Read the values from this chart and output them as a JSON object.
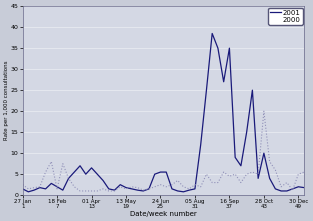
{
  "title": "",
  "xlabel": "Date/week number",
  "ylabel": "Rate per 1,000 consultations",
  "background_color": "#c8ccd8",
  "plot_bg_color": "#d4d8e4",
  "x_tick_labels": [
    "27 Jan\n1",
    "18 Feb\n7",
    "01 Apr\n13",
    "13 May\n19",
    "24 Jun\n25",
    "05 Aug\n31",
    "16 Sep\n37",
    "28 Oct\n43",
    "30 Dec\n49"
  ],
  "x_tick_positions": [
    1,
    7,
    13,
    19,
    25,
    31,
    37,
    43,
    49
  ],
  "ylim": [
    0,
    45
  ],
  "yticks": [
    0,
    5,
    10,
    15,
    20,
    25,
    30,
    35,
    40,
    45
  ],
  "line_2001_color": "#1a1a7a",
  "line_2000_color": "#9090b8",
  "legend_labels": [
    "2001",
    "2000"
  ],
  "weeks_2001": [
    1,
    2,
    3,
    4,
    5,
    6,
    7,
    8,
    9,
    10,
    11,
    12,
    13,
    14,
    15,
    16,
    17,
    18,
    19,
    20,
    21,
    22,
    23,
    24,
    25,
    26,
    27,
    28,
    29,
    30,
    31,
    32,
    33,
    34,
    35,
    36,
    37,
    38,
    39,
    40,
    41,
    42,
    43,
    44,
    45,
    46,
    47,
    48,
    49,
    50
  ],
  "values_2001": [
    1.5,
    0.8,
    1.2,
    1.8,
    1.5,
    2.8,
    2.0,
    1.2,
    4.0,
    5.5,
    7.0,
    5.0,
    6.5,
    5.0,
    3.5,
    1.5,
    1.2,
    2.5,
    1.8,
    1.5,
    1.2,
    1.0,
    1.5,
    5.0,
    5.5,
    5.5,
    1.5,
    1.0,
    0.8,
    1.2,
    1.5,
    12.0,
    25.0,
    38.5,
    35.0,
    27.0,
    35.0,
    9.0,
    7.0,
    15.0,
    25.0,
    4.0,
    10.0,
    4.0,
    1.5,
    1.0,
    1.0,
    1.5,
    2.0,
    1.8
  ],
  "weeks_2000": [
    1,
    2,
    3,
    4,
    5,
    6,
    7,
    8,
    9,
    10,
    11,
    12,
    13,
    14,
    15,
    16,
    17,
    18,
    19,
    20,
    21,
    22,
    23,
    24,
    25,
    26,
    27,
    28,
    29,
    30,
    31,
    32,
    33,
    34,
    35,
    36,
    37,
    38,
    39,
    40,
    41,
    42,
    43,
    44,
    45,
    46,
    47,
    48,
    49,
    50
  ],
  "values_2000": [
    2.5,
    1.5,
    1.8,
    2.0,
    5.5,
    8.0,
    1.5,
    7.5,
    4.0,
    2.0,
    1.0,
    1.0,
    1.0,
    1.0,
    1.5,
    1.0,
    1.0,
    2.0,
    1.5,
    2.0,
    1.8,
    1.2,
    1.5,
    2.0,
    2.5,
    2.0,
    2.5,
    3.5,
    2.0,
    1.5,
    2.5,
    2.0,
    5.0,
    3.0,
    3.0,
    5.5,
    4.5,
    5.0,
    3.0,
    5.0,
    5.5,
    5.0,
    20.0,
    8.0,
    6.0,
    2.0,
    3.0,
    1.2,
    5.0,
    5.5
  ]
}
